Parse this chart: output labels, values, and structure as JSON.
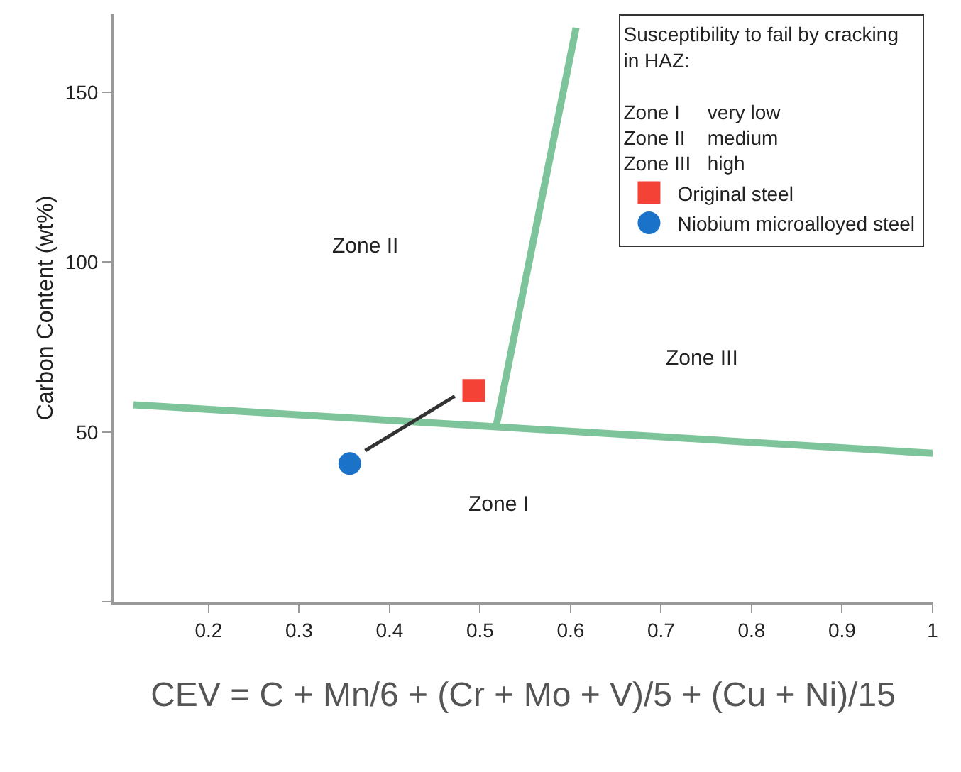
{
  "chart_data": {
    "type": "line",
    "xlabel": "CEV = C + Mn/6 + (Cr + Mo + V)/5 + (Cu + Ni)/15",
    "ylabel": "Carbon Content (wt%)",
    "legend_title": "Susceptibility to fail by cracking in HAZ:",
    "xlim": [
      0.095,
      1.0
    ],
    "xticks": [
      0.2,
      0.3,
      0.4,
      0.5,
      0.6,
      0.7,
      0.8,
      0.9,
      1.0
    ],
    "ylim": [
      0,
      173
    ],
    "yticks": [
      {
        "value": 0,
        "label": null
      },
      50,
      100,
      150
    ],
    "grid": false,
    "legend": "top right",
    "series": [
      {
        "color": "#7dc49a",
        "x": [
          0.117,
          1.0
        ],
        "values": [
          58,
          43.7
        ]
      },
      {
        "color": "#7dc49a",
        "x": [
          0.518,
          0.606
        ],
        "values": [
          52,
          169
        ]
      },
      {
        "color": "#333333",
        "x": [
          0.373,
          0.472
        ],
        "values": [
          44.5,
          60.5
        ]
      },
      {
        "type": "scatter",
        "name": "Original steel",
        "color": "#f44336",
        "marker": "square",
        "x": [
          0.493
        ],
        "values": [
          62.2
        ]
      },
      {
        "type": "scatter",
        "name": "Niobium microalloyed steel",
        "color": "#1a73c8",
        "marker": "circle",
        "x": [
          0.356
        ],
        "values": [
          40.7
        ]
      }
    ],
    "annotations": [
      "Zone II",
      "Zone III",
      "Zone I",
      "Zone I     very low",
      "Zone II    medium",
      "Zone III   high"
    ]
  }
}
